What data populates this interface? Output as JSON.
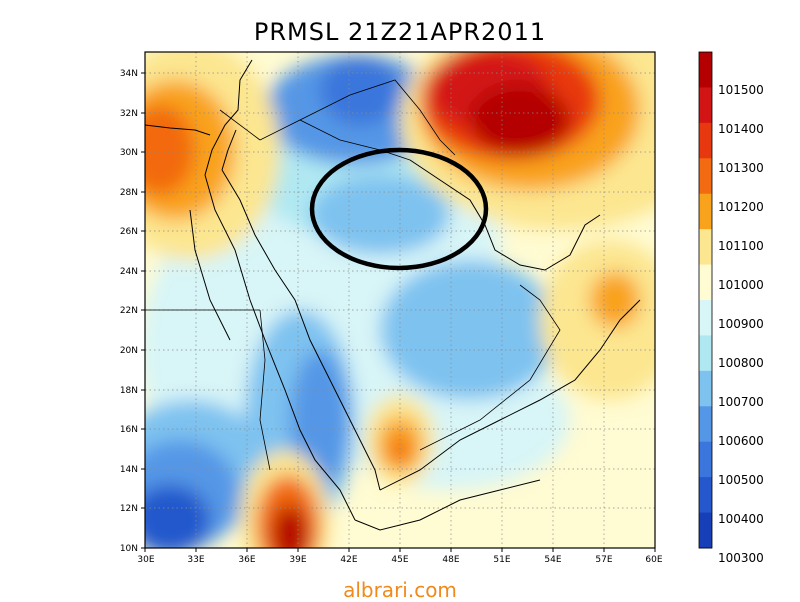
{
  "title": "PRMSL 21Z21APR2011",
  "source_credit": "albrari.com",
  "map": {
    "lat_labels": [
      "34N",
      "32N",
      "30N",
      "28N",
      "26N",
      "24N",
      "22N",
      "20N",
      "18N",
      "16N",
      "14N",
      "12N",
      "10N"
    ],
    "lon_labels": [
      "30E",
      "33E",
      "36E",
      "39E",
      "42E",
      "45E",
      "48E",
      "51E",
      "54E",
      "57E",
      "60E"
    ],
    "extent": {
      "lon": [
        30,
        60
      ],
      "lat": [
        10,
        35
      ]
    },
    "grid": "dotted",
    "highlight": "black ellipse over central/northern Arabian Peninsula"
  },
  "colorbar": {
    "labels": [
      "101500",
      "101400",
      "101300",
      "101200",
      "101100",
      "101000",
      "100900",
      "100800",
      "100700",
      "100600",
      "100500",
      "100400",
      "100300"
    ],
    "colors": [
      "#b40000",
      "#d31414",
      "#e8380f",
      "#f26b10",
      "#f9a21c",
      "#fce690",
      "#fffbd2",
      "#d8f5f7",
      "#b0e8f2",
      "#7ec2f0",
      "#5497e6",
      "#3a76dc",
      "#2458cc",
      "#163fb8"
    ]
  }
}
